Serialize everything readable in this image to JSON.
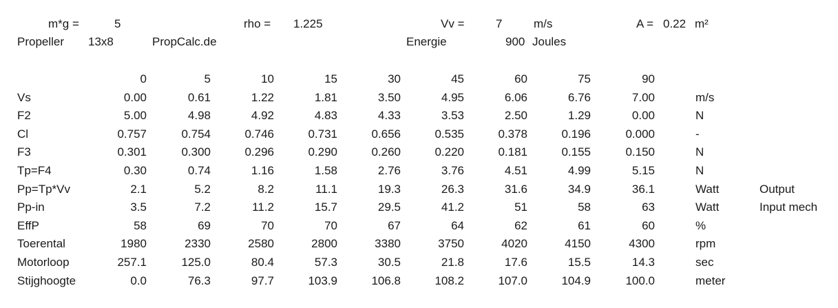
{
  "header": {
    "mg_label": "m*g =",
    "mg_value": "5",
    "rho_label": "rho =",
    "rho_value": "1.225",
    "vv_label": "Vv =",
    "vv_value": "7",
    "vv_unit": "m/s",
    "a_label": "A =",
    "a_value": "0.22",
    "a_unit": "m²",
    "propeller_label": "Propeller",
    "propeller_value": "13x8",
    "source": "PropCalc.de",
    "energie_label": "Energie",
    "energie_value": "900",
    "energie_unit": "Joules"
  },
  "table": {
    "angles": [
      "0",
      "5",
      "10",
      "15",
      "30",
      "45",
      "60",
      "75",
      "90"
    ],
    "rows": [
      {
        "label": "Vs",
        "values": [
          "0.00",
          "0.61",
          "1.22",
          "1.81",
          "3.50",
          "4.95",
          "6.06",
          "6.76",
          "7.00"
        ],
        "unit": "m/s",
        "note": ""
      },
      {
        "label": "F2",
        "values": [
          "5.00",
          "4.98",
          "4.92",
          "4.83",
          "4.33",
          "3.53",
          "2.50",
          "1.29",
          "0.00"
        ],
        "unit": "N",
        "note": ""
      },
      {
        "label": "Cl",
        "values": [
          "0.757",
          "0.754",
          "0.746",
          "0.731",
          "0.656",
          "0.535",
          "0.378",
          "0.196",
          "0.000"
        ],
        "unit": "-",
        "note": ""
      },
      {
        "label": "F3",
        "values": [
          "0.301",
          "0.300",
          "0.296",
          "0.290",
          "0.260",
          "0.220",
          "0.181",
          "0.155",
          "0.150"
        ],
        "unit": "N",
        "note": ""
      },
      {
        "label": "Tp=F4",
        "values": [
          "0.30",
          "0.74",
          "1.16",
          "1.58",
          "2.76",
          "3.76",
          "4.51",
          "4.99",
          "5.15"
        ],
        "unit": "N",
        "note": ""
      },
      {
        "label": "Pp=Tp*Vv",
        "values": [
          "2.1",
          "5.2",
          "8.2",
          "11.1",
          "19.3",
          "26.3",
          "31.6",
          "34.9",
          "36.1"
        ],
        "unit": "Watt",
        "note": "Output"
      },
      {
        "label": "Pp-in",
        "values": [
          "3.5",
          "7.2",
          "11.2",
          "15.7",
          "29.5",
          "41.2",
          "51",
          "58",
          "63"
        ],
        "unit": "Watt",
        "note": "Input mech"
      },
      {
        "label": "EffP",
        "values": [
          "58",
          "69",
          "70",
          "70",
          "67",
          "64",
          "62",
          "61",
          "60"
        ],
        "unit": "%",
        "note": ""
      },
      {
        "label": "Toerental",
        "values": [
          "1980",
          "2330",
          "2580",
          "2800",
          "3380",
          "3750",
          "4020",
          "4150",
          "4300"
        ],
        "unit": "rpm",
        "note": ""
      },
      {
        "label": "Motorloop",
        "values": [
          "257.1",
          "125.0",
          "80.4",
          "57.3",
          "30.5",
          "21.8",
          "17.6",
          "15.5",
          "14.3"
        ],
        "unit": "sec",
        "note": ""
      },
      {
        "label": "Stijghoogte",
        "values": [
          "0.0",
          "76.3",
          "97.7",
          "103.9",
          "106.8",
          "108.2",
          "107.0",
          "104.9",
          "100.0"
        ],
        "unit": "meter",
        "note": ""
      }
    ]
  }
}
